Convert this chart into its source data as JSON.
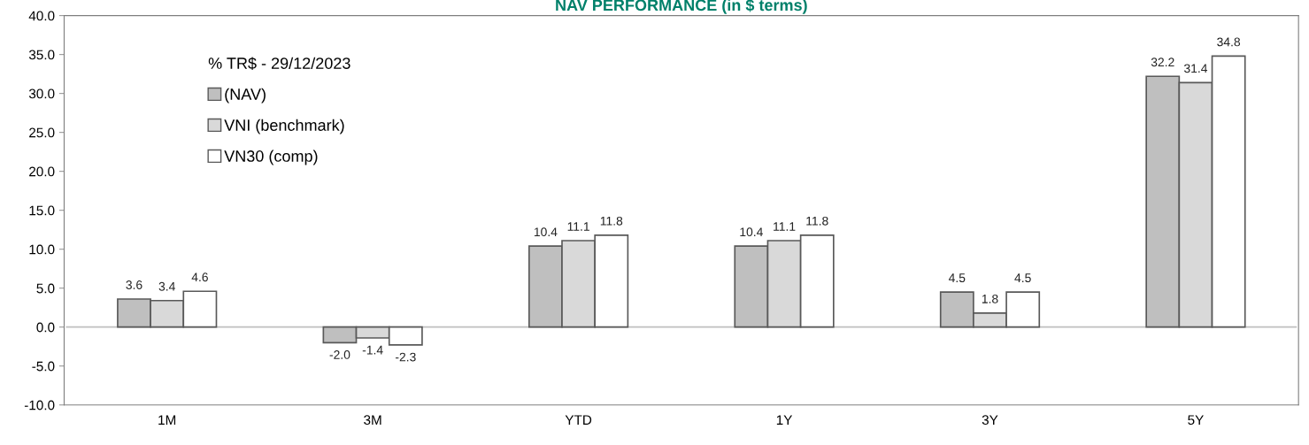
{
  "chart_data": {
    "type": "bar",
    "title": "NAV PERFORMANCE (in $ terms)",
    "legend_title": "% TR$ - 29/12/2023",
    "categories": [
      "1M",
      "3M",
      "YTD",
      "1Y",
      "3Y",
      "5Y"
    ],
    "series": [
      {
        "name": "(NAV)",
        "color": "#bfbfbf",
        "values": [
          3.6,
          -2.0,
          10.4,
          10.4,
          4.5,
          32.2
        ],
        "value_labels": [
          "3.6",
          "-2.0",
          "10.4",
          "10.4",
          "4.5",
          "32.2"
        ]
      },
      {
        "name": "VNI (benchmark)",
        "color": "#d9d9d9",
        "values": [
          3.4,
          -1.4,
          11.1,
          11.1,
          1.8,
          31.4
        ],
        "value_labels": [
          "3.4",
          "-1.4",
          "11.1",
          "11.1",
          "1.8",
          "31.4"
        ]
      },
      {
        "name": "VN30 (comp)",
        "color": "#ffffff",
        "values": [
          4.6,
          -2.3,
          11.8,
          11.8,
          4.5,
          34.8
        ],
        "value_labels": [
          "4.6",
          "-2.3",
          "11.8",
          "11.8",
          "4.5",
          "34.8"
        ]
      }
    ],
    "ylim": [
      -10,
      40
    ],
    "yticks": [
      {
        "value": -10,
        "label": "-10.0"
      },
      {
        "value": -5,
        "label": "-5.0"
      },
      {
        "value": 0,
        "label": "0.0"
      },
      {
        "value": 5,
        "label": "5.0"
      },
      {
        "value": 10,
        "label": "10.0"
      },
      {
        "value": 15,
        "label": "15.0"
      },
      {
        "value": 20,
        "label": "20.0"
      },
      {
        "value": 25,
        "label": "25.0"
      },
      {
        "value": 30,
        "label": "30.0"
      },
      {
        "value": 35,
        "label": "35.0"
      },
      {
        "value": 40,
        "label": "40.0"
      }
    ],
    "legend": "top left"
  }
}
